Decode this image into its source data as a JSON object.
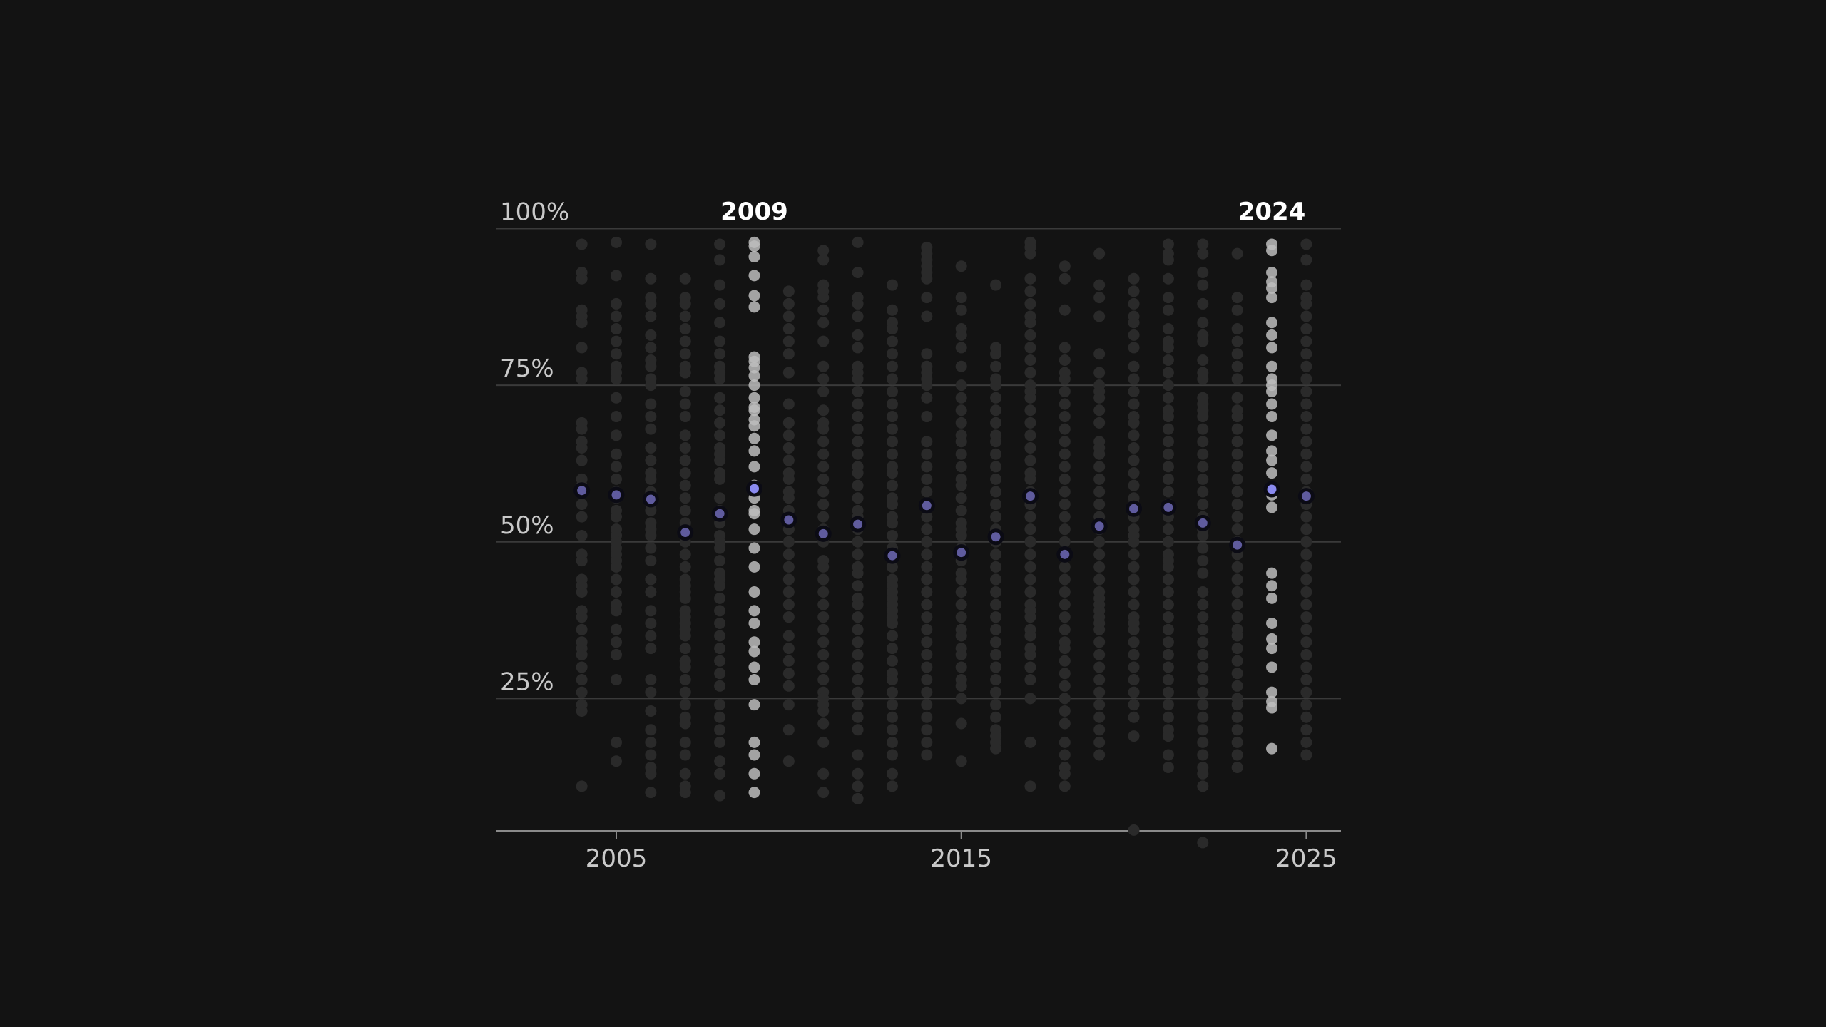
{
  "chart_data": {
    "type": "scatter",
    "x_range": [
      2001.5,
      2026
    ],
    "y_range": [
      0,
      100
    ],
    "y_tick_values": [
      25,
      50,
      75,
      100
    ],
    "y_tick_labels": [
      "25%",
      "50%",
      "75%",
      "100%"
    ],
    "x_tick_values": [
      2005,
      2015,
      2025
    ],
    "x_tick_labels": [
      "2005",
      "2015",
      "2025"
    ],
    "highlighted_years": [
      2009,
      2024
    ],
    "highlight_labels": [
      "2009",
      "2024"
    ],
    "grid": true,
    "colors": {
      "background": "#131313",
      "point_dim": "#2a2a2a",
      "point_highlight": "#bdbdbd",
      "median_point": "#5f5b9e",
      "median_highlight": "#8a8af0",
      "median_outline": "#0b0b14"
    },
    "median_series": [
      {
        "year": 2004,
        "value": 58.2
      },
      {
        "year": 2005,
        "value": 57.5
      },
      {
        "year": 2006,
        "value": 56.8
      },
      {
        "year": 2007,
        "value": 51.5
      },
      {
        "year": 2008,
        "value": 54.5
      },
      {
        "year": 2009,
        "value": 58.5
      },
      {
        "year": 2010,
        "value": 53.5
      },
      {
        "year": 2011,
        "value": 51.3
      },
      {
        "year": 2012,
        "value": 52.8
      },
      {
        "year": 2013,
        "value": 47.8
      },
      {
        "year": 2014,
        "value": 55.8
      },
      {
        "year": 2015,
        "value": 48.3
      },
      {
        "year": 2016,
        "value": 50.8
      },
      {
        "year": 2017,
        "value": 57.3
      },
      {
        "year": 2018,
        "value": 48.0
      },
      {
        "year": 2019,
        "value": 52.5
      },
      {
        "year": 2020,
        "value": 55.3
      },
      {
        "year": 2021,
        "value": 55.5
      },
      {
        "year": 2022,
        "value": 53.0
      },
      {
        "year": 2023,
        "value": 49.5
      },
      {
        "year": 2024,
        "value": 58.4
      },
      {
        "year": 2025,
        "value": 57.3
      }
    ],
    "points": {
      "2004": [
        97.5,
        93,
        92,
        87,
        86,
        85,
        81,
        77,
        76,
        69,
        68,
        66,
        65,
        63,
        60,
        59,
        58,
        56,
        54,
        51,
        48,
        47,
        44,
        43,
        42,
        39,
        38,
        36,
        34,
        33,
        32,
        30,
        28,
        26,
        24,
        23,
        11
      ],
      "2005": [
        97.8,
        92.5,
        88,
        86,
        84,
        82,
        80,
        78,
        77,
        76,
        73,
        70,
        67,
        64,
        62,
        60,
        58,
        57,
        55,
        54,
        52,
        51,
        50,
        49,
        48,
        47,
        46,
        44,
        42,
        40,
        39,
        36,
        34,
        32,
        28,
        18,
        15
      ],
      "2006": [
        97.5,
        92,
        89,
        88,
        86,
        83,
        81,
        79,
        78,
        76,
        75,
        72,
        70,
        68,
        65,
        63,
        61,
        60,
        58,
        57,
        56,
        55,
        53,
        52,
        51,
        49,
        47,
        44,
        42,
        39,
        37,
        35,
        33,
        28,
        26,
        23,
        20,
        18,
        16,
        14,
        13,
        10
      ],
      "2007": [
        92,
        89,
        88,
        86,
        84,
        82,
        80,
        78,
        77,
        74,
        72,
        70,
        67,
        65,
        63,
        61,
        59,
        57,
        55,
        53,
        52,
        50,
        48,
        46,
        44,
        43,
        42,
        41,
        39,
        38,
        37,
        36,
        35,
        33,
        31,
        30,
        28,
        26,
        24,
        22,
        21,
        18,
        16,
        13,
        11,
        10
      ],
      "2008": [
        97.5,
        95,
        91,
        88,
        85,
        82,
        80,
        78,
        77,
        76,
        73,
        71,
        69,
        67,
        65,
        64,
        63,
        61,
        60,
        57,
        55,
        53,
        51,
        50,
        49,
        47,
        45,
        44,
        43,
        41,
        39,
        37,
        35,
        33,
        31,
        29,
        27,
        24,
        22,
        20,
        18,
        15,
        13,
        9.5
      ],
      "2009": [
        97.8,
        97.2,
        95.5,
        92.5,
        89.3,
        87.5,
        79.5,
        78.8,
        77.8,
        76.5,
        75,
        73,
        71.5,
        71,
        69.5,
        68.5,
        66.5,
        64.5,
        62,
        59,
        57,
        55,
        54.5,
        52,
        49,
        46,
        42,
        39,
        37,
        34,
        32.5,
        30,
        28,
        24,
        18,
        16,
        13,
        10
      ],
      "2010": [
        90,
        88,
        86,
        84,
        82,
        80,
        77,
        72,
        69,
        67,
        65,
        63,
        61,
        60,
        58,
        57,
        55,
        54,
        52,
        50,
        48,
        46,
        44,
        42,
        40,
        38,
        35,
        33,
        31,
        29,
        27,
        24,
        20,
        15
      ],
      "2011": [
        96.5,
        95,
        91,
        90,
        89,
        87,
        85,
        82,
        78,
        76,
        74,
        71,
        69,
        68,
        66,
        64,
        62,
        60,
        58,
        56,
        54,
        52,
        50,
        47,
        46,
        44,
        42,
        40,
        38,
        36,
        34,
        32,
        30,
        28,
        26,
        25,
        24,
        23,
        21,
        18,
        13,
        10
      ],
      "2012": [
        97.8,
        93,
        89,
        88,
        86,
        83,
        81,
        78,
        77,
        76,
        74,
        72,
        70,
        68,
        66,
        64,
        62,
        61,
        59,
        57,
        55,
        54,
        52,
        50,
        48,
        46,
        45,
        43,
        41,
        40,
        38,
        36,
        34,
        32,
        30,
        28,
        26,
        24,
        22,
        20,
        16,
        13,
        11,
        9
      ],
      "2013": [
        91,
        87,
        85,
        84,
        82,
        80,
        78,
        76,
        74,
        72,
        70,
        68,
        66,
        64,
        62,
        61,
        59,
        57,
        56,
        54,
        53,
        51,
        49,
        48,
        46,
        44,
        43,
        42,
        41,
        40,
        39,
        38,
        37,
        35,
        33,
        31,
        29,
        28,
        26,
        24,
        22,
        20,
        18,
        16,
        13,
        11
      ],
      "2014": [
        97,
        96,
        95,
        94,
        93,
        92,
        89,
        86,
        80,
        78,
        77,
        76,
        75,
        73,
        70,
        66,
        64,
        62,
        60,
        58,
        56,
        54,
        52,
        50,
        48,
        46,
        44,
        42,
        40,
        38,
        36,
        34,
        32,
        30,
        28,
        26,
        24,
        22,
        20,
        18,
        16
      ],
      "2015": [
        94,
        89,
        87,
        84,
        83,
        81,
        78,
        75,
        73,
        71,
        69,
        67,
        66,
        64,
        62,
        60,
        59,
        57,
        55,
        53,
        52,
        51,
        49,
        47,
        45,
        44,
        42,
        40,
        38,
        36,
        35,
        33,
        32,
        30,
        28,
        27,
        25,
        21,
        15
      ],
      "2016": [
        91,
        81,
        80,
        78,
        76,
        75,
        73,
        71,
        69,
        67,
        66,
        64,
        62,
        60,
        58,
        56,
        54,
        52,
        50,
        48,
        46,
        44,
        42,
        40,
        38,
        36,
        34,
        32,
        30,
        28,
        26,
        24,
        22,
        20,
        19,
        18,
        17
      ],
      "2017": [
        97.8,
        97,
        96,
        92,
        90,
        88,
        86,
        85,
        83,
        81,
        79,
        77,
        75,
        74,
        73,
        71,
        69,
        67,
        65,
        63,
        61,
        60,
        58,
        56,
        54,
        52,
        50,
        48,
        46,
        44,
        42,
        40,
        39,
        38,
        36,
        35,
        33,
        32,
        30,
        28,
        25,
        18,
        11
      ],
      "2018": [
        94,
        92,
        87,
        81,
        79,
        77,
        76,
        74,
        72,
        70,
        68,
        66,
        64,
        62,
        60,
        58,
        56,
        54,
        52,
        50,
        48,
        46,
        44,
        42,
        40,
        38,
        36,
        34,
        33,
        31,
        29,
        27,
        25,
        23,
        21,
        18,
        16,
        14,
        13,
        11
      ],
      "2019": [
        96,
        91,
        89,
        86,
        80,
        77,
        75,
        74,
        73,
        71,
        69,
        66,
        65,
        64,
        62,
        60,
        58,
        56,
        54,
        52,
        50,
        48,
        46,
        44,
        42,
        41,
        40,
        39,
        38,
        37,
        36,
        34,
        32,
        30,
        28,
        26,
        24,
        22,
        20,
        18,
        16
      ],
      "2020": [
        92,
        90,
        88,
        86,
        85,
        83,
        81,
        78,
        76,
        74,
        72,
        70,
        69,
        67,
        65,
        63,
        61,
        59,
        57,
        56,
        54,
        52,
        51,
        50,
        48,
        46,
        44,
        42,
        40,
        38,
        37,
        36,
        34,
        32,
        30,
        28,
        26,
        24,
        22,
        19,
        4
      ],
      "2021": [
        97.5,
        96,
        95,
        92,
        89,
        87,
        84,
        82,
        81,
        79,
        77,
        75,
        73,
        71,
        70,
        68,
        66,
        64,
        62,
        60,
        58,
        56,
        54,
        52,
        50,
        48,
        47,
        46,
        44,
        42,
        40,
        38,
        36,
        34,
        32,
        30,
        28,
        26,
        24,
        22,
        20,
        19,
        16,
        14
      ],
      "2022": [
        97.5,
        96,
        93,
        91,
        88,
        85,
        83,
        82,
        79,
        77,
        76,
        73,
        72,
        71,
        70,
        68,
        66,
        64,
        62,
        60,
        58,
        56,
        54,
        52,
        51,
        49,
        47,
        45,
        42,
        40,
        38,
        36,
        34,
        32,
        30,
        28,
        26,
        24,
        22,
        20,
        18,
        16,
        14,
        13,
        11,
        2
      ],
      "2023": [
        96,
        89,
        87,
        84,
        82,
        80,
        78,
        76,
        73,
        71,
        70,
        68,
        66,
        64,
        62,
        60,
        58,
        56,
        54,
        52,
        50,
        48,
        46,
        44,
        42,
        40,
        38,
        36,
        35,
        33,
        31,
        29,
        27,
        25,
        24,
        22,
        20,
        18,
        16,
        14
      ],
      "2024": [
        97.5,
        96.5,
        93,
        91.5,
        90.5,
        89,
        85,
        83,
        81,
        78,
        76,
        75,
        74,
        72,
        70,
        67,
        64.5,
        63,
        61,
        57.5,
        55.5,
        45,
        43,
        41,
        37,
        34.5,
        33,
        30,
        26,
        24.5,
        23.5,
        17
      ],
      "2025": [
        97.5,
        95,
        91,
        89,
        88,
        86,
        84,
        82,
        80,
        78,
        76,
        74,
        72,
        70,
        68,
        66,
        64,
        62,
        60,
        58,
        56,
        54,
        52,
        50,
        48,
        46,
        44,
        42,
        40,
        38,
        36,
        34,
        32,
        30,
        28,
        26,
        24,
        22,
        20,
        18,
        16
      ]
    }
  }
}
